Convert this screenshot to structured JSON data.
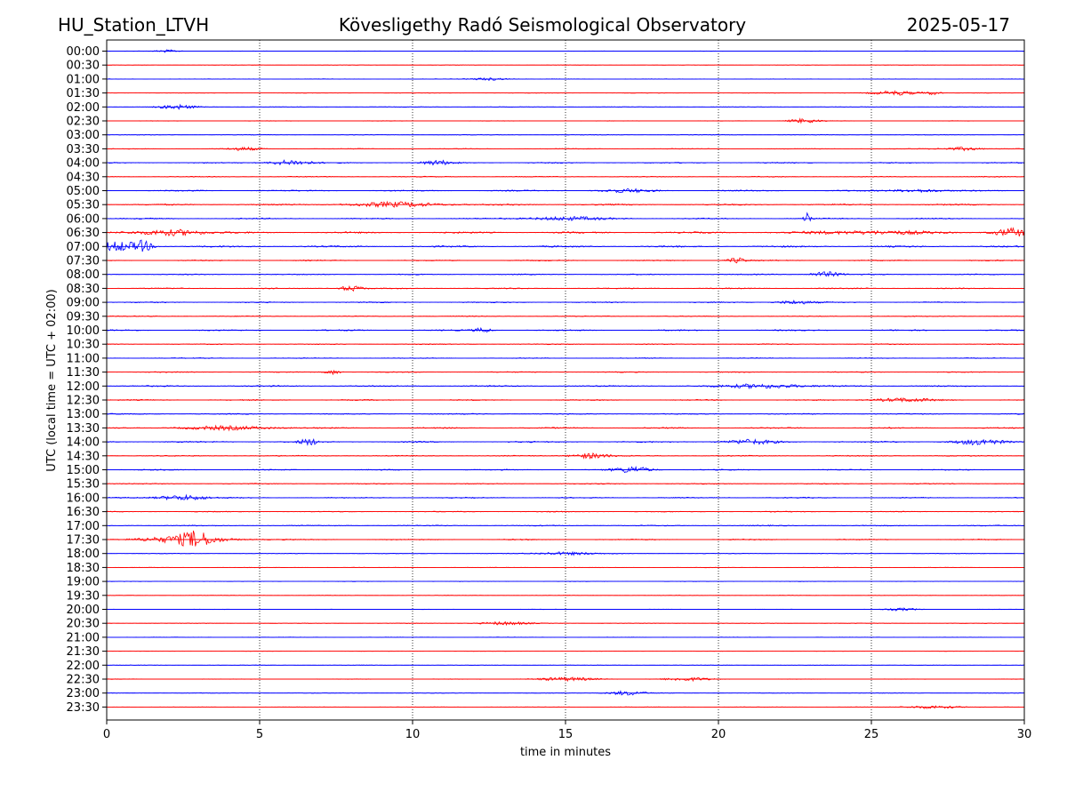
{
  "header": {
    "station": "HU_Station_LTVH",
    "observatory": "Kövesligethy Radó Seismological Observatory",
    "date": "2025-05-17"
  },
  "chart_data": {
    "type": "line",
    "title": "Kövesligethy Radó Seismological Observatory",
    "xlabel": "time in minutes",
    "ylabel": "UTC (local time = UTC + 02:00)",
    "xlim": [
      0,
      30
    ],
    "x_ticks": [
      0,
      5,
      10,
      15,
      20,
      25,
      30
    ],
    "grid": "vertical dotted lines at x ticks",
    "colors": {
      "even": "#0000ff",
      "odd": "#ff0000"
    },
    "rows": [
      "00:00",
      "00:30",
      "01:00",
      "01:30",
      "02:00",
      "02:30",
      "03:00",
      "03:30",
      "04:00",
      "04:30",
      "05:00",
      "05:30",
      "06:00",
      "06:30",
      "07:00",
      "07:30",
      "08:00",
      "08:30",
      "09:00",
      "09:30",
      "10:00",
      "10:30",
      "11:00",
      "11:30",
      "12:00",
      "12:30",
      "13:00",
      "13:30",
      "14:00",
      "14:30",
      "15:00",
      "15:30",
      "16:00",
      "16:30",
      "17:00",
      "17:30",
      "18:00",
      "18:30",
      "19:00",
      "19:30",
      "20:00",
      "20:30",
      "21:00",
      "21:30",
      "22:00",
      "22:30",
      "23:00",
      "23:30"
    ],
    "noise_level": [
      0.25,
      0.2,
      0.25,
      0.3,
      0.3,
      0.3,
      0.35,
      0.45,
      0.6,
      0.5,
      0.7,
      0.8,
      0.7,
      0.9,
      0.9,
      0.6,
      0.6,
      0.6,
      0.6,
      0.5,
      0.7,
      0.5,
      0.5,
      0.55,
      0.75,
      0.6,
      0.6,
      0.7,
      0.75,
      0.6,
      0.6,
      0.55,
      0.6,
      0.5,
      0.6,
      0.6,
      0.35,
      0.3,
      0.25,
      0.25,
      0.25,
      0.3,
      0.25,
      0.25,
      0.25,
      0.3,
      0.3,
      0.3
    ],
    "events": [
      {
        "row": "00:00",
        "minute": 2.0,
        "amp": 1.5,
        "width": 0.4
      },
      {
        "row": "01:00",
        "minute": 12.5,
        "amp": 1.5,
        "width": 0.6
      },
      {
        "row": "01:30",
        "minute": 25.8,
        "amp": 2.5,
        "width": 0.7
      },
      {
        "row": "01:30",
        "minute": 27.0,
        "amp": 1.8,
        "width": 0.3
      },
      {
        "row": "02:00",
        "minute": 2.3,
        "amp": 2.5,
        "width": 0.6
      },
      {
        "row": "02:30",
        "minute": 22.8,
        "amp": 2.5,
        "width": 0.5
      },
      {
        "row": "03:30",
        "minute": 4.5,
        "amp": 1.8,
        "width": 0.5
      },
      {
        "row": "03:30",
        "minute": 28.0,
        "amp": 2.0,
        "width": 0.6
      },
      {
        "row": "04:00",
        "minute": 6.0,
        "amp": 3.0,
        "width": 0.7
      },
      {
        "row": "04:00",
        "minute": 10.8,
        "amp": 2.5,
        "width": 0.5
      },
      {
        "row": "05:00",
        "minute": 17.0,
        "amp": 1.8,
        "width": 0.8
      },
      {
        "row": "05:00",
        "minute": 26.5,
        "amp": 1.8,
        "width": 0.8
      },
      {
        "row": "05:30",
        "minute": 9.5,
        "amp": 2.5,
        "width": 1.5
      },
      {
        "row": "06:00",
        "minute": 15.0,
        "amp": 2.0,
        "width": 1.2
      },
      {
        "row": "06:00",
        "minute": 22.9,
        "amp": 9.0,
        "width": 0.12
      },
      {
        "row": "06:30",
        "minute": 2.2,
        "amp": 3.5,
        "width": 1.0
      },
      {
        "row": "06:30",
        "minute": 29.6,
        "amp": 4.5,
        "width": 0.6
      },
      {
        "row": "06:30",
        "minute": 25.0,
        "amp": 2.0,
        "width": 2.0
      },
      {
        "row": "07:00",
        "minute": 0.4,
        "amp": 5.0,
        "width": 0.8
      },
      {
        "row": "07:00",
        "minute": 1.2,
        "amp": 5.0,
        "width": 0.25
      },
      {
        "row": "07:30",
        "minute": 20.6,
        "amp": 3.0,
        "width": 0.3
      },
      {
        "row": "08:00",
        "minute": 23.5,
        "amp": 3.0,
        "width": 0.5
      },
      {
        "row": "08:30",
        "minute": 8.0,
        "amp": 3.0,
        "width": 0.4
      },
      {
        "row": "09:00",
        "minute": 22.5,
        "amp": 2.0,
        "width": 0.6
      },
      {
        "row": "10:00",
        "minute": 12.3,
        "amp": 2.5,
        "width": 0.3
      },
      {
        "row": "11:30",
        "minute": 7.4,
        "amp": 2.5,
        "width": 0.25
      },
      {
        "row": "12:00",
        "minute": 21.5,
        "amp": 2.5,
        "width": 1.2
      },
      {
        "row": "12:30",
        "minute": 26.0,
        "amp": 2.0,
        "width": 1.0
      },
      {
        "row": "13:30",
        "minute": 4.0,
        "amp": 2.0,
        "width": 1.5
      },
      {
        "row": "14:00",
        "minute": 6.6,
        "amp": 3.5,
        "width": 0.3
      },
      {
        "row": "14:00",
        "minute": 21.0,
        "amp": 2.5,
        "width": 0.8
      },
      {
        "row": "14:00",
        "minute": 28.5,
        "amp": 3.0,
        "width": 0.8
      },
      {
        "row": "14:30",
        "minute": 15.8,
        "amp": 3.0,
        "width": 0.6
      },
      {
        "row": "15:00",
        "minute": 17.2,
        "amp": 3.5,
        "width": 0.6
      },
      {
        "row": "16:00",
        "minute": 2.5,
        "amp": 3.0,
        "width": 0.8
      },
      {
        "row": "17:30",
        "minute": 2.9,
        "amp": 6.5,
        "width": 0.5
      },
      {
        "row": "17:30",
        "minute": 2.5,
        "amp": 3.5,
        "width": 1.5
      },
      {
        "row": "18:00",
        "minute": 15.0,
        "amp": 1.8,
        "width": 1.0
      },
      {
        "row": "20:00",
        "minute": 26.0,
        "amp": 1.5,
        "width": 0.5
      },
      {
        "row": "20:30",
        "minute": 13.0,
        "amp": 1.8,
        "width": 0.8
      },
      {
        "row": "22:30",
        "minute": 15.0,
        "amp": 2.0,
        "width": 1.0
      },
      {
        "row": "22:30",
        "minute": 19.0,
        "amp": 1.8,
        "width": 0.8
      },
      {
        "row": "23:00",
        "minute": 17.0,
        "amp": 2.5,
        "width": 0.6
      },
      {
        "row": "23:30",
        "minute": 27.0,
        "amp": 1.8,
        "width": 0.8
      }
    ]
  }
}
